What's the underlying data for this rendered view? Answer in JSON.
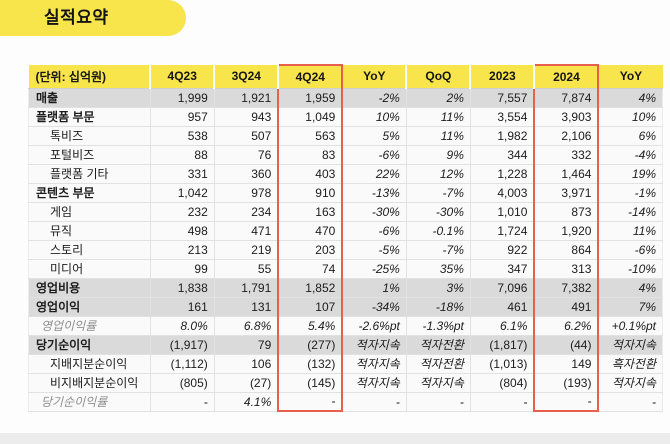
{
  "page": {
    "title": "실적요약"
  },
  "colors": {
    "brand_yellow": "#F7E54B",
    "highlight_red": "#E7604B",
    "gray_row": "#DADADA"
  },
  "table": {
    "unit_label": "(단위: 십억원)",
    "columns": [
      "(단위: 십억원)",
      "4Q23",
      "3Q24",
      "4Q24",
      "YoY",
      "QoQ",
      "2023",
      "2024",
      "YoY"
    ],
    "highlighted_columns": [
      "4Q24",
      "2024"
    ],
    "highlight_column_indices": [
      3,
      7
    ],
    "italic_value_columns": [
      3,
      4,
      7
    ],
    "rows": [
      {
        "label": "매출",
        "style": "section-gray",
        "values": [
          "1,999",
          "1,921",
          "1,959",
          "-2%",
          "2%",
          "7,557",
          "7,874",
          "4%"
        ]
      },
      {
        "label": "플랫폼 부문",
        "style": "section",
        "values": [
          "957",
          "943",
          "1,049",
          "10%",
          "11%",
          "3,554",
          "3,903",
          "10%"
        ]
      },
      {
        "label": "톡비즈",
        "style": "sub",
        "values": [
          "538",
          "507",
          "563",
          "5%",
          "11%",
          "1,982",
          "2,106",
          "6%"
        ]
      },
      {
        "label": "포털비즈",
        "style": "sub",
        "values": [
          "88",
          "76",
          "83",
          "-6%",
          "9%",
          "344",
          "332",
          "-4%"
        ]
      },
      {
        "label": "플랫폼 기타",
        "style": "sub",
        "values": [
          "331",
          "360",
          "403",
          "22%",
          "12%",
          "1,228",
          "1,464",
          "19%"
        ]
      },
      {
        "label": "콘텐츠 부문",
        "style": "section",
        "values": [
          "1,042",
          "978",
          "910",
          "-13%",
          "-7%",
          "4,003",
          "3,971",
          "-1%"
        ]
      },
      {
        "label": "게임",
        "style": "sub",
        "values": [
          "232",
          "234",
          "163",
          "-30%",
          "-30%",
          "1,010",
          "873",
          "-14%"
        ]
      },
      {
        "label": "뮤직",
        "style": "sub",
        "values": [
          "498",
          "471",
          "470",
          "-6%",
          "-0.1%",
          "1,724",
          "1,920",
          "11%"
        ]
      },
      {
        "label": "스토리",
        "style": "sub",
        "values": [
          "213",
          "219",
          "203",
          "-5%",
          "-7%",
          "922",
          "864",
          "-6%"
        ]
      },
      {
        "label": "미디어",
        "style": "sub",
        "values": [
          "99",
          "55",
          "74",
          "-25%",
          "35%",
          "347",
          "313",
          "-10%"
        ]
      },
      {
        "label": "영업비용",
        "style": "section-gray",
        "values": [
          "1,838",
          "1,791",
          "1,852",
          "1%",
          "3%",
          "7,096",
          "7,382",
          "4%"
        ]
      },
      {
        "label": "영업이익",
        "style": "section-gray",
        "values": [
          "161",
          "131",
          "107",
          "-34%",
          "-18%",
          "461",
          "491",
          "7%"
        ]
      },
      {
        "label": "영업이익률",
        "style": "ratio",
        "values": [
          "8.0%",
          "6.8%",
          "5.4%",
          "-2.6%pt",
          "-1.3%pt",
          "6.1%",
          "6.2%",
          "+0.1%pt"
        ]
      },
      {
        "label": "당기순이익",
        "style": "section-gray",
        "values": [
          "(1,917)",
          "79",
          "(277)",
          "적자지속",
          "적자전환",
          "(1,817)",
          "(44)",
          "적자지속"
        ]
      },
      {
        "label": "지배지분순이익",
        "style": "sub",
        "values": [
          "(1,112)",
          "106",
          "(132)",
          "적자지속",
          "적자전환",
          "(1,013)",
          "149",
          "흑자전환"
        ]
      },
      {
        "label": "비지배지분순이익",
        "style": "sub",
        "values": [
          "(805)",
          "(27)",
          "(145)",
          "적자지속",
          "적자지속",
          "(804)",
          "(193)",
          "적자지속"
        ]
      },
      {
        "label": "당기순이익률",
        "style": "ratio",
        "values": [
          "-",
          "4.1%",
          "-",
          "-",
          "-",
          "-",
          "-",
          "-"
        ]
      }
    ]
  }
}
